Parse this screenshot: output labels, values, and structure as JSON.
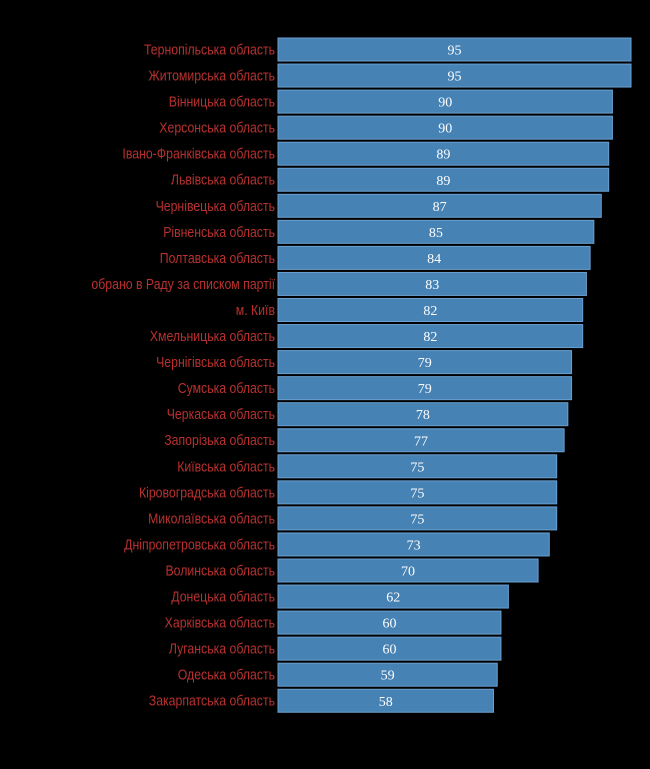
{
  "chart_data": {
    "type": "bar",
    "orientation": "horizontal",
    "categories": [
      "Тернопільська область",
      "Житомирська область",
      "Вінницька область",
      "Херсонська область",
      "Івано-Франківська область",
      "Львівська область",
      "Чернівецька область",
      "Рівненська область",
      "Полтавська область",
      "обрано в Раду за списком партії",
      "м. Київ",
      "Хмельницька область",
      "Чернігівська область",
      "Сумська область",
      "Черкаська область",
      "Запорізька область",
      "Київська область",
      "Кіровоградська область",
      "Миколаївська область",
      "Дніпропетровська область",
      "Волинська область",
      "Донецька область",
      "Харківська область",
      "Луганська область",
      "Одеська область",
      "Закарпатська область"
    ],
    "values": [
      95,
      95,
      90,
      90,
      89,
      89,
      87,
      85,
      84,
      83,
      82,
      82,
      79,
      79,
      78,
      77,
      75,
      75,
      75,
      73,
      70,
      62,
      60,
      60,
      59,
      58
    ],
    "xlim": [
      0,
      95
    ],
    "grid": false,
    "data_labels": true,
    "colors": {
      "bar": "#4682b4",
      "bar_border": "#6a9fcf",
      "label": "#b8312f",
      "value": "#ffffff",
      "background": "#000000"
    }
  }
}
